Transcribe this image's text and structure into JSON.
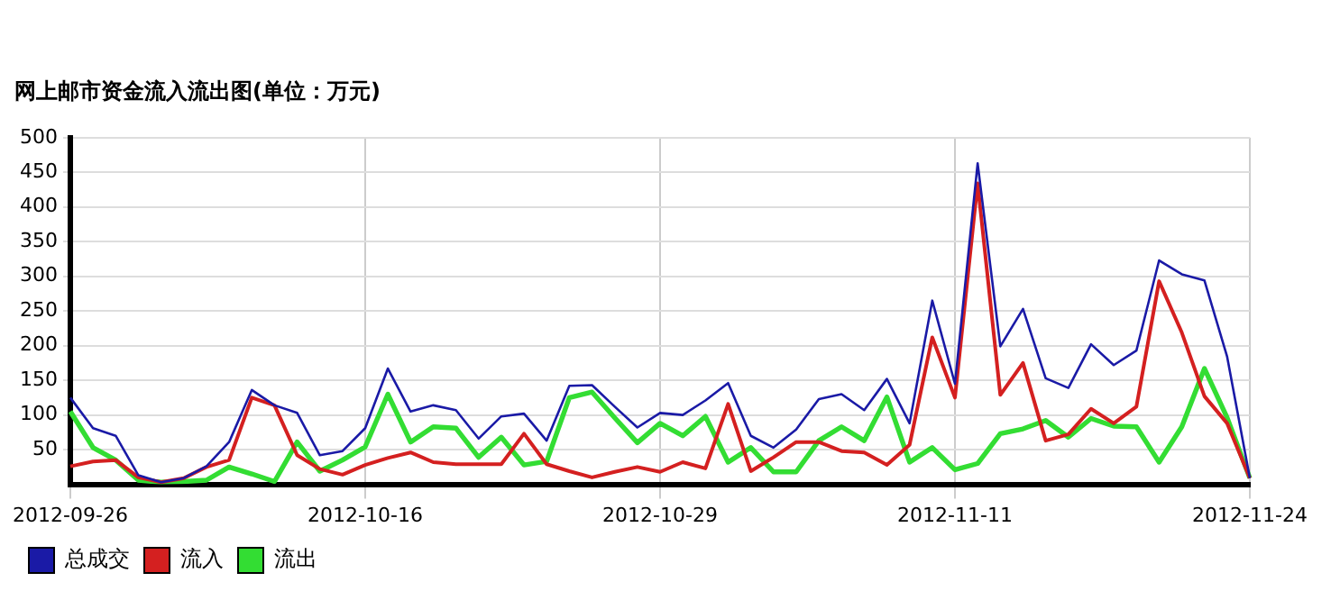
{
  "chart_data": {
    "type": "line",
    "title": "网上邮市资金流入流出图(单位：万元)",
    "categories": [
      "2012-09-26",
      null,
      null,
      null,
      null,
      null,
      null,
      null,
      null,
      null,
      null,
      null,
      null,
      "2012-10-16",
      null,
      null,
      null,
      null,
      null,
      null,
      null,
      null,
      null,
      null,
      null,
      null,
      "2012-10-29",
      null,
      null,
      null,
      null,
      null,
      null,
      null,
      null,
      null,
      null,
      null,
      null,
      "2012-11-11",
      null,
      null,
      null,
      null,
      null,
      null,
      null,
      null,
      null,
      null,
      null,
      null,
      "2012-11-24"
    ],
    "series": [
      {
        "name": "总成交",
        "color": "#1a1aa6",
        "values": [
          125,
          81,
          70,
          13,
          3,
          9,
          26,
          61,
          136,
          114,
          103,
          42,
          48,
          81,
          167,
          105,
          114,
          107,
          66,
          98,
          102,
          63,
          142,
          143,
          112,
          82,
          103,
          100,
          121,
          146,
          70,
          53,
          79,
          123,
          130,
          107,
          152,
          88,
          265,
          145,
          463,
          199,
          253,
          153,
          139,
          202,
          172,
          193,
          323,
          303,
          294,
          184,
          9
        ]
      },
      {
        "name": "流入",
        "color": "#d42020",
        "values": [
          26,
          33,
          35,
          10,
          3,
          9,
          25,
          35,
          125,
          114,
          42,
          22,
          14,
          28,
          38,
          46,
          32,
          29,
          29,
          29,
          73,
          29,
          19,
          10,
          18,
          25,
          18,
          32,
          23,
          116,
          19,
          39,
          61,
          61,
          48,
          46,
          28,
          57,
          212,
          125,
          434,
          129,
          175,
          63,
          72,
          109,
          88,
          112,
          293,
          219,
          127,
          88,
          9
        ]
      },
      {
        "name": "流出",
        "color": "#33dd33",
        "values": [
          105,
          53,
          35,
          6,
          3,
          4,
          6,
          25,
          15,
          4,
          61,
          19,
          35,
          54,
          130,
          61,
          83,
          81,
          39,
          68,
          28,
          33,
          125,
          133,
          96,
          60,
          88,
          70,
          98,
          32,
          53,
          18,
          18,
          63,
          83,
          63,
          126,
          32,
          53,
          21,
          30,
          73,
          80,
          92,
          68,
          95,
          84,
          83,
          32,
          83,
          167,
          96,
          9
        ]
      }
    ],
    "ylim": [
      0,
      500
    ],
    "yticks": [
      50,
      100,
      150,
      200,
      250,
      300,
      350,
      400,
      450,
      500
    ],
    "grid": true,
    "legend": "bottom",
    "marker": "none",
    "line_style": "solid"
  }
}
